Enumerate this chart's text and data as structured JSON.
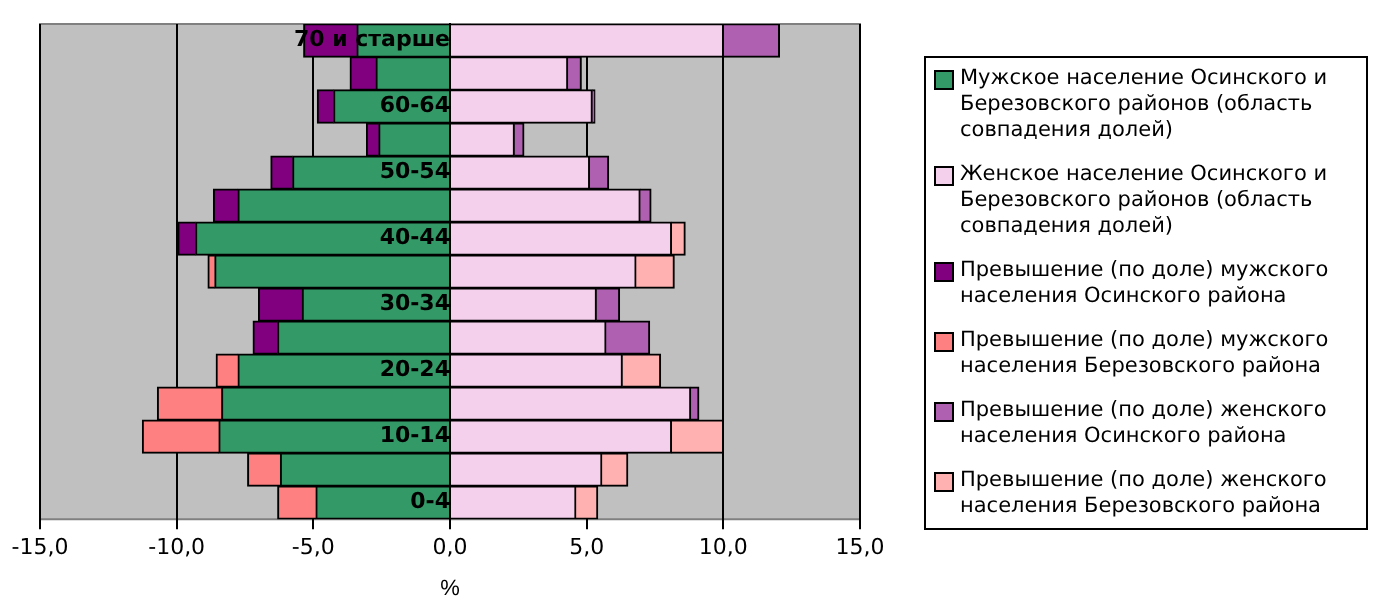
{
  "chart_data": {
    "type": "bar",
    "orientation": "horizontal",
    "stacked": true,
    "xlabel": "%",
    "categories": [
      "70 и старше",
      null,
      "60-64",
      null,
      "50-54",
      null,
      "40-44",
      null,
      "30-34",
      null,
      "20-24",
      null,
      "10-14",
      null,
      "0-4"
    ],
    "series": [
      {
        "name": "Мужское население Осинского и Березовского районов (область совпадения долей)",
        "color": "#339966",
        "values": [
          -3.4,
          -2.7,
          -4.25,
          -2.6,
          -5.75,
          -7.75,
          -9.3,
          -8.6,
          -5.4,
          -6.3,
          -7.75,
          -8.35,
          -8.45,
          -6.2,
          -4.9
        ]
      },
      {
        "name": "Женское население Осинского и Березовского районов (область совпадения долей)",
        "color": "#f4d0ec",
        "values": [
          10.0,
          4.3,
          5.2,
          2.35,
          5.1,
          6.95,
          8.1,
          6.8,
          5.35,
          5.7,
          6.3,
          8.8,
          8.1,
          5.55,
          4.6
        ]
      },
      {
        "name": "Превышение (по доле) мужского населения Осинского района",
        "color": "#800080",
        "values": [
          -1.95,
          -0.95,
          -0.6,
          -0.45,
          -0.8,
          -0.9,
          -0.65,
          null,
          -1.6,
          -0.9,
          null,
          null,
          null,
          null,
          null
        ]
      },
      {
        "name": "Превышение (по доле) мужского населения Березовского района",
        "color": "#ff8080",
        "values": [
          null,
          null,
          null,
          null,
          null,
          null,
          null,
          -0.25,
          null,
          null,
          -0.8,
          -2.35,
          -2.8,
          -1.2,
          -1.4
        ]
      },
      {
        "name": "Превышение (по доле) женского населения Осинского района",
        "color": "#b060b0",
        "values": [
          2.05,
          0.5,
          0.1,
          0.35,
          0.7,
          0.4,
          null,
          null,
          0.85,
          1.6,
          null,
          0.3,
          null,
          null,
          null
        ]
      },
      {
        "name": "Превышение (по доле) женского населения Березовского района",
        "color": "#ffb0b0",
        "values": [
          null,
          null,
          null,
          null,
          null,
          null,
          0.5,
          1.4,
          null,
          null,
          1.4,
          null,
          1.9,
          0.95,
          0.8
        ]
      }
    ],
    "xlim": [
      -15,
      15
    ],
    "xticks": [
      {
        "value": -15,
        "label": "-15,0"
      },
      {
        "value": -10,
        "label": "-10,0"
      },
      {
        "value": -5,
        "label": "-5,0"
      },
      {
        "value": 0,
        "label": "0,0"
      },
      {
        "value": 5,
        "label": "5,0"
      },
      {
        "value": 10,
        "label": "10,0"
      },
      {
        "value": 15,
        "label": "15,0"
      }
    ],
    "grid": "x",
    "legend": "right"
  }
}
